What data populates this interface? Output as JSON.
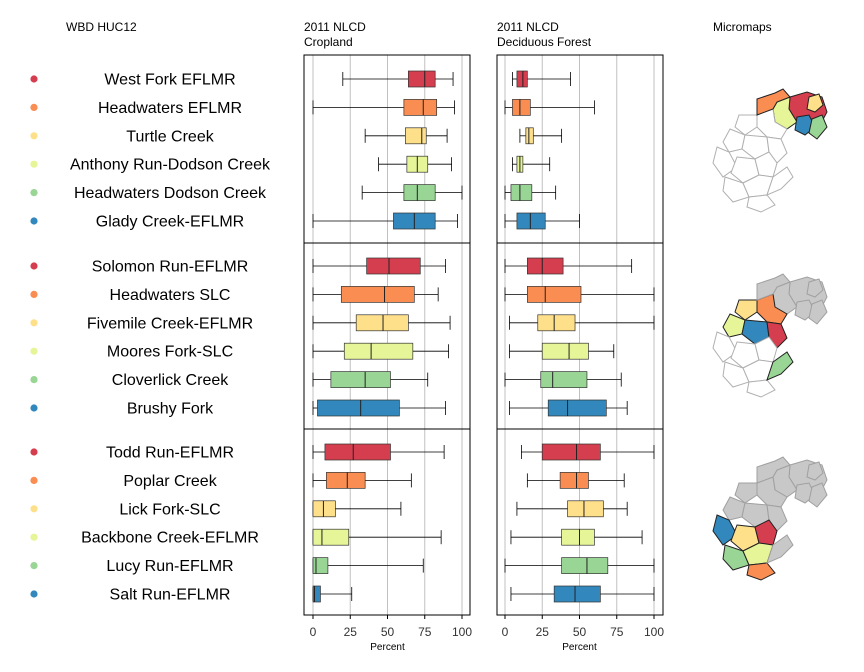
{
  "headers": {
    "names": "WBD HUC12",
    "panel1_line1": "2011 NLCD",
    "panel1_line2": "Cropland",
    "panel2_line1": "2011 NLCD",
    "panel2_line2": "Deciduous Forest",
    "micromaps": "Micromaps"
  },
  "colors": {
    "rank_colors": [
      "#d53e4f",
      "#f98d52",
      "#fee08b",
      "#e6f598",
      "#99d594",
      "#3288bd"
    ],
    "map_gray": "#c8c8c8",
    "map_outline": "#a0a0a0",
    "grid": "#c0c0c0"
  },
  "chart_data": [
    {
      "type": "box",
      "title": "2011 NLCD Cropland",
      "xlabel": "Percent",
      "xlim": [
        0,
        100
      ],
      "xticks": [
        "0",
        "25",
        "50",
        "75",
        "100"
      ],
      "grid": true,
      "groups": [
        [
          {
            "name": "West Fork EFLMR",
            "min": 20,
            "q1": 64,
            "median": 75,
            "q3": 82,
            "max": 94
          },
          {
            "name": "Headwaters EFLMR",
            "min": 0,
            "q1": 61,
            "median": 74,
            "q3": 83,
            "max": 95
          },
          {
            "name": "Turtle Creek",
            "min": 35,
            "q1": 62,
            "median": 73,
            "q3": 76,
            "max": 90
          },
          {
            "name": "Anthony Run-Dodson Creek",
            "min": 44,
            "q1": 63,
            "median": 70,
            "q3": 77,
            "max": 93
          },
          {
            "name": "Headwaters Dodson Creek",
            "min": 33,
            "q1": 61,
            "median": 70,
            "q3": 82,
            "max": 100
          },
          {
            "name": "Glady Creek-EFLMR",
            "min": 0,
            "q1": 54,
            "median": 68,
            "q3": 82,
            "max": 97
          }
        ],
        [
          {
            "name": "Solomon Run-EFLMR",
            "min": 0,
            "q1": 36,
            "median": 51,
            "q3": 72,
            "max": 89
          },
          {
            "name": "Headwaters SLC",
            "min": 0,
            "q1": 19,
            "median": 48,
            "q3": 68,
            "max": 84
          },
          {
            "name": "Fivemile Creek-EFLMR",
            "min": 0,
            "q1": 29,
            "median": 47,
            "q3": 64,
            "max": 92
          },
          {
            "name": "Moores Fork-SLC",
            "min": 0,
            "q1": 21,
            "median": 39,
            "q3": 67,
            "max": 91
          },
          {
            "name": "Cloverlick Creek",
            "min": 0,
            "q1": 12,
            "median": 35,
            "q3": 52,
            "max": 77
          },
          {
            "name": "Brushy Fork",
            "min": 0,
            "q1": 3,
            "median": 32,
            "q3": 58,
            "max": 89
          }
        ],
        [
          {
            "name": "Todd Run-EFLMR",
            "min": 0,
            "q1": 8,
            "median": 27,
            "q3": 52,
            "max": 88
          },
          {
            "name": "Poplar Creek",
            "min": 0,
            "q1": 9,
            "median": 23,
            "q3": 35,
            "max": 66
          },
          {
            "name": "Lick Fork-SLC",
            "min": 0,
            "q1": 0,
            "median": 7,
            "q3": 15,
            "max": 59
          },
          {
            "name": "Backbone Creek-EFLMR",
            "min": 0,
            "q1": 0,
            "median": 6,
            "q3": 24,
            "max": 86
          },
          {
            "name": "Lucy Run-EFLMR",
            "min": 0,
            "q1": 0,
            "median": 2,
            "q3": 10,
            "max": 74
          },
          {
            "name": "Salt Run-EFLMR",
            "min": 0,
            "q1": 0,
            "median": 1,
            "q3": 5,
            "max": 26
          }
        ]
      ]
    },
    {
      "type": "box",
      "title": "2011 NLCD Deciduous Forest",
      "xlabel": "Percent",
      "xlim": [
        0,
        100
      ],
      "xticks": [
        "0",
        "25",
        "50",
        "75",
        "100"
      ],
      "grid": true,
      "groups": [
        [
          {
            "name": "West Fork EFLMR",
            "min": 5,
            "q1": 8,
            "median": 12,
            "q3": 15,
            "max": 44
          },
          {
            "name": "Headwaters EFLMR",
            "min": 0,
            "q1": 5,
            "median": 10,
            "q3": 17,
            "max": 60
          },
          {
            "name": "Turtle Creek",
            "min": 10,
            "q1": 14,
            "median": 16,
            "q3": 19,
            "max": 38
          },
          {
            "name": "Anthony Run-Dodson Creek",
            "min": 5,
            "q1": 8,
            "median": 10,
            "q3": 12,
            "max": 30
          },
          {
            "name": "Headwaters Dodson Creek",
            "min": 0,
            "q1": 4,
            "median": 10,
            "q3": 18,
            "max": 34
          },
          {
            "name": "Glady Creek-EFLMR",
            "min": 0,
            "q1": 8,
            "median": 17,
            "q3": 27,
            "max": 50
          }
        ],
        [
          {
            "name": "Solomon Run-EFLMR",
            "min": 0,
            "q1": 15,
            "median": 25,
            "q3": 39,
            "max": 85
          },
          {
            "name": "Headwaters SLC",
            "min": 0,
            "q1": 15,
            "median": 27,
            "q3": 51,
            "max": 100
          },
          {
            "name": "Fivemile Creek-EFLMR",
            "min": 3,
            "q1": 22,
            "median": 33,
            "q3": 47,
            "max": 100
          },
          {
            "name": "Moores Fork-SLC",
            "min": 3,
            "q1": 25,
            "median": 43,
            "q3": 56,
            "max": 73
          },
          {
            "name": "Cloverlick Creek",
            "min": 0,
            "q1": 24,
            "median": 32,
            "q3": 55,
            "max": 78
          },
          {
            "name": "Brushy Fork",
            "min": 3,
            "q1": 29,
            "median": 42,
            "q3": 68,
            "max": 82
          }
        ],
        [
          {
            "name": "Todd Run-EFLMR",
            "min": 11,
            "q1": 25,
            "median": 48,
            "q3": 64,
            "max": 100
          },
          {
            "name": "Poplar Creek",
            "min": 15,
            "q1": 37,
            "median": 48,
            "q3": 56,
            "max": 80
          },
          {
            "name": "Lick Fork-SLC",
            "min": 8,
            "q1": 42,
            "median": 53,
            "q3": 66,
            "max": 82
          },
          {
            "name": "Backbone Creek-EFLMR",
            "min": 4,
            "q1": 38,
            "median": 50,
            "q3": 60,
            "max": 92
          },
          {
            "name": "Lucy Run-EFLMR",
            "min": 0,
            "q1": 38,
            "median": 55,
            "q3": 69,
            "max": 100
          },
          {
            "name": "Salt Run-EFLMR",
            "min": 4,
            "q1": 33,
            "median": 47,
            "q3": 64,
            "max": 100
          }
        ]
      ]
    }
  ]
}
